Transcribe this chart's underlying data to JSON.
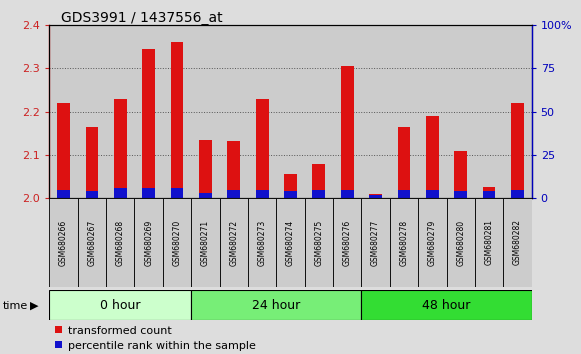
{
  "title": "GDS3991 / 1437556_at",
  "samples": [
    "GSM680266",
    "GSM680267",
    "GSM680268",
    "GSM680269",
    "GSM680270",
    "GSM680271",
    "GSM680272",
    "GSM680273",
    "GSM680274",
    "GSM680275",
    "GSM680276",
    "GSM680277",
    "GSM680278",
    "GSM680279",
    "GSM680280",
    "GSM680281",
    "GSM680282"
  ],
  "transformed_count": [
    2.22,
    2.165,
    2.23,
    2.345,
    2.36,
    2.135,
    2.133,
    2.23,
    2.055,
    2.08,
    2.305,
    2.01,
    2.165,
    2.19,
    2.11,
    2.025,
    2.22
  ],
  "percentile_rank": [
    5,
    4,
    6,
    6,
    6,
    3,
    5,
    5,
    4,
    5,
    5,
    2,
    5,
    5,
    4,
    4,
    5
  ],
  "groups": [
    {
      "label": "0 hour",
      "start": 0,
      "end": 5,
      "color": "#ccffcc"
    },
    {
      "label": "24 hour",
      "start": 5,
      "end": 11,
      "color": "#77ee77"
    },
    {
      "label": "48 hour",
      "start": 11,
      "end": 17,
      "color": "#33dd33"
    }
  ],
  "ylim_left": [
    2.0,
    2.4
  ],
  "ylim_right": [
    0,
    100
  ],
  "yticks_left": [
    2.0,
    2.1,
    2.2,
    2.3,
    2.4
  ],
  "yticks_right": [
    0,
    25,
    50,
    75,
    100
  ],
  "bar_color_red": "#dd1111",
  "bar_color_blue": "#1111cc",
  "col_bg_color": "#cccccc",
  "plot_bg_color": "#ffffff",
  "axis_color_left": "#cc2222",
  "axis_color_right": "#0000bb",
  "base_value": 2.0,
  "bar_width": 0.45
}
